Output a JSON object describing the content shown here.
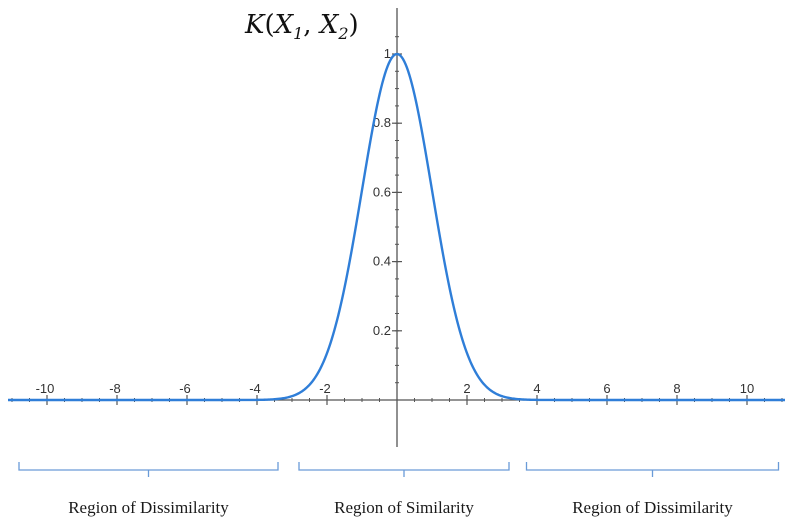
{
  "chart_data": {
    "type": "line",
    "function": "exp(-x^2/2)",
    "xlim": [
      -11.2,
      11.2
    ],
    "ylim": [
      0,
      1.1
    ],
    "x_ticks": [
      -10,
      -8,
      -6,
      -4,
      -2,
      2,
      4,
      6,
      8,
      10
    ],
    "y_ticks": [
      0.2,
      0.4,
      0.6,
      0.8,
      1
    ],
    "x_tick_labels": [
      "-10",
      "-8",
      "-6",
      "-4",
      "-2",
      "2",
      "4",
      "6",
      "8",
      "10"
    ],
    "y_tick_labels": [
      "0.2",
      "0.4",
      "0.6",
      "0.8",
      "1"
    ],
    "ylabel": {
      "base": "K",
      "open": "(",
      "arg1": "X",
      "arg1_sub": "1",
      "sep": ", ",
      "arg2": "X",
      "arg2_sub": "2",
      "close": ")"
    },
    "line_color": "#2f7ed8",
    "axis_color": "#555555",
    "grid": false,
    "regions": [
      {
        "label": "Region of Dissimilarity",
        "x_range": [
          -10.8,
          -3.4
        ]
      },
      {
        "label": "Region of Similarity",
        "x_range": [
          -2.8,
          3.2
        ]
      },
      {
        "label": "Region of Dissimilarity",
        "x_range": [
          3.7,
          10.9
        ]
      }
    ],
    "region_color": "#6a9bd8"
  }
}
